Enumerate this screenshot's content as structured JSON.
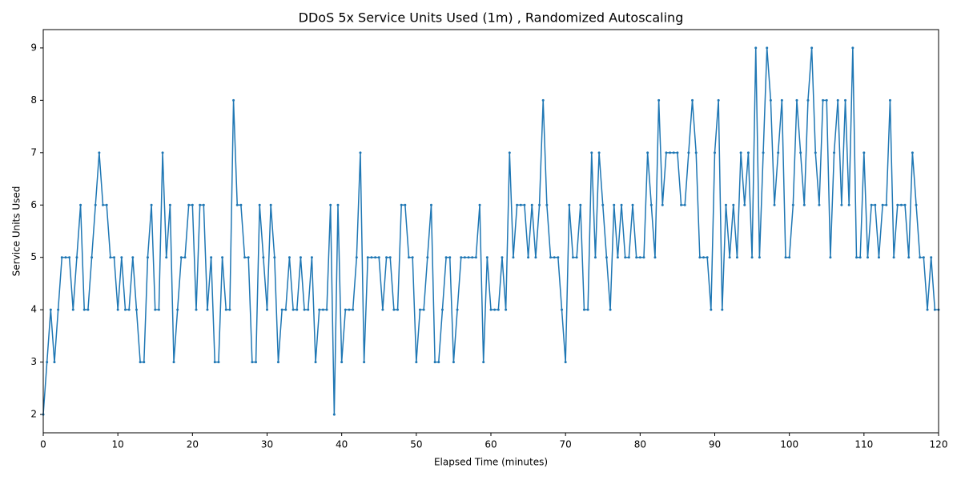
{
  "chart_data": {
    "type": "line",
    "title": "DDoS 5x Service Units Used (1m) , Randomized Autoscaling",
    "xlabel": "Elapsed Time (minutes)",
    "ylabel": "Service Units Used",
    "xlim": [
      0,
      120
    ],
    "ylim": [
      1.65,
      9.35
    ],
    "xticks": [
      0,
      10,
      20,
      30,
      40,
      50,
      60,
      70,
      80,
      90,
      100,
      110,
      120
    ],
    "yticks": [
      2,
      3,
      4,
      5,
      6,
      7,
      8,
      9
    ],
    "x": [
      0,
      0.5,
      1,
      1.5,
      2,
      2.5,
      3,
      3.5,
      4,
      4.5,
      5,
      5.5,
      6,
      6.5,
      7,
      7.5,
      8,
      8.5,
      9,
      9.5,
      10,
      10.5,
      11,
      11.5,
      12,
      12.5,
      13,
      13.5,
      14,
      14.5,
      15,
      15.5,
      16,
      16.5,
      17,
      17.5,
      18,
      18.5,
      19,
      19.5,
      20,
      20.5,
      21,
      21.5,
      22,
      22.5,
      23,
      23.5,
      24,
      24.5,
      25,
      25.5,
      26,
      26.5,
      27,
      27.5,
      28,
      28.5,
      29,
      29.5,
      30,
      30.5,
      31,
      31.5,
      32,
      32.5,
      33,
      33.5,
      34,
      34.5,
      35,
      35.5,
      36,
      36.5,
      37,
      37.5,
      38,
      38.5,
      39,
      39.5,
      40,
      40.5,
      41,
      41.5,
      42,
      42.5,
      43,
      43.5,
      44,
      44.5,
      45,
      45.5,
      46,
      46.5,
      47,
      47.5,
      48,
      48.5,
      49,
      49.5,
      50,
      50.5,
      51,
      51.5,
      52,
      52.5,
      53,
      53.5,
      54,
      54.5,
      55,
      55.5,
      56,
      56.5,
      57,
      57.5,
      58,
      58.5,
      59,
      59.5,
      60,
      60.5,
      61,
      61.5,
      62,
      62.5,
      63,
      63.5,
      64,
      64.5,
      65,
      65.5,
      66,
      66.5,
      67,
      67.5,
      68,
      68.5,
      69,
      69.5,
      70,
      70.5,
      71,
      71.5,
      72,
      72.5,
      73,
      73.5,
      74,
      74.5,
      75,
      75.5,
      76,
      76.5,
      77,
      77.5,
      78,
      78.5,
      79,
      79.5,
      80,
      80.5,
      81,
      81.5,
      82,
      82.5,
      83,
      83.5,
      84,
      84.5,
      85,
      85.5,
      86,
      86.5,
      87,
      87.5,
      88,
      88.5,
      89,
      89.5,
      90,
      90.5,
      91,
      91.5,
      92,
      92.5,
      93,
      93.5,
      94,
      94.5,
      95,
      95.5,
      96,
      96.5,
      97,
      97.5,
      98,
      98.5,
      99,
      99.5,
      100,
      100.5,
      101,
      101.5,
      102,
      102.5,
      103,
      103.5,
      104,
      104.5,
      105,
      105.5,
      106,
      106.5,
      107,
      107.5,
      108,
      108.5,
      109,
      109.5,
      110,
      110.5,
      111,
      111.5,
      112,
      112.5,
      113,
      113.5,
      114,
      114.5,
      115,
      115.5,
      116,
      116.5,
      117,
      117.5,
      118,
      118.5,
      119,
      119.5,
      120
    ],
    "series": [
      {
        "color": "#1f77b4",
        "values": [
          2,
          3,
          4,
          3,
          4,
          5,
          5,
          5,
          4,
          5,
          6,
          4,
          4,
          5,
          6,
          7,
          6,
          6,
          5,
          5,
          4,
          5,
          4,
          4,
          5,
          4,
          3,
          3,
          5,
          6,
          4,
          4,
          7,
          5,
          6,
          3,
          4,
          5,
          5,
          6,
          6,
          4,
          6,
          6,
          4,
          5,
          3,
          3,
          5,
          4,
          4,
          8,
          6,
          6,
          5,
          5,
          3,
          3,
          6,
          5,
          4,
          6,
          5,
          3,
          4,
          4,
          5,
          4,
          4,
          5,
          4,
          4,
          5,
          3,
          4,
          4,
          4,
          6,
          2,
          6,
          3,
          4,
          4,
          4,
          5,
          7,
          3,
          5,
          5,
          5,
          5,
          4,
          5,
          5,
          4,
          4,
          6,
          6,
          5,
          5,
          3,
          4,
          4,
          5,
          6,
          3,
          3,
          4,
          5,
          5,
          3,
          4,
          5,
          5,
          5,
          5,
          5,
          6,
          3,
          5,
          4,
          4,
          4,
          5,
          4,
          7,
          5,
          6,
          6,
          6,
          5,
          6,
          5,
          6,
          8,
          6,
          5,
          5,
          5,
          4,
          3,
          6,
          5,
          5,
          6,
          4,
          4,
          7,
          5,
          7,
          6,
          5,
          4,
          6,
          5,
          6,
          5,
          5,
          6,
          5,
          5,
          5,
          7,
          6,
          5,
          8,
          6,
          7,
          7,
          7,
          7,
          6,
          6,
          7,
          8,
          7,
          5,
          5,
          5,
          4,
          7,
          8,
          4,
          6,
          5,
          6,
          5,
          7,
          6,
          7,
          5,
          9,
          5,
          7,
          9,
          8,
          6,
          7,
          8,
          5,
          5,
          6,
          8,
          7,
          6,
          8,
          9,
          7,
          6,
          8,
          8,
          5,
          7,
          8,
          6,
          8,
          6,
          9,
          5,
          5,
          7,
          5,
          6,
          6,
          5,
          6,
          6,
          8,
          5,
          6,
          6,
          6,
          5,
          7,
          6,
          5,
          5,
          4,
          5,
          4,
          4
        ]
      }
    ]
  }
}
